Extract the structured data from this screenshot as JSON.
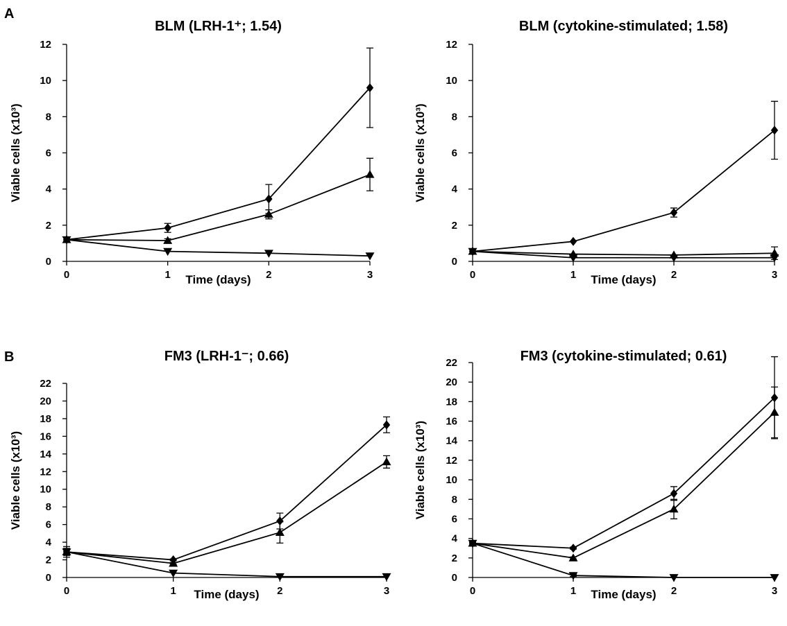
{
  "figure": {
    "panel_letters": [
      "A",
      "B"
    ]
  },
  "chart_data": [
    {
      "type": "line",
      "panel": "A",
      "title": "BLM (LRH-1⁺; 1.54)",
      "xlabel": "Time (days)",
      "ylabel": "Viable cells (x10³)",
      "xlim": [
        0,
        3
      ],
      "ylim": [
        0,
        12
      ],
      "xticks": [
        0,
        1,
        2,
        3
      ],
      "yticks": [
        0,
        2,
        4,
        6,
        8,
        10,
        12
      ],
      "x": [
        0,
        1,
        2,
        3
      ],
      "series": [
        {
          "marker": "diamond",
          "values": [
            1.2,
            1.85,
            3.45,
            9.6
          ],
          "errors": [
            0.1,
            0.25,
            0.8,
            2.2
          ]
        },
        {
          "marker": "triangle-up",
          "values": [
            1.2,
            1.15,
            2.6,
            4.8
          ],
          "errors": [
            0.1,
            0.1,
            0.25,
            0.9
          ]
        },
        {
          "marker": "triangle-down",
          "values": [
            1.2,
            0.55,
            0.45,
            0.3
          ],
          "errors": [
            0.1,
            0.05,
            0.05,
            0.05
          ]
        }
      ]
    },
    {
      "type": "line",
      "panel": "A",
      "title": "BLM (cytokine-stimulated; 1.58)",
      "xlabel": "Time (days)",
      "ylabel": "Viable cells (x10³)",
      "xlim": [
        0,
        3
      ],
      "ylim": [
        0,
        12
      ],
      "xticks": [
        0,
        1,
        2,
        3
      ],
      "yticks": [
        0,
        2,
        4,
        6,
        8,
        10,
        12
      ],
      "x": [
        0,
        1,
        2,
        3
      ],
      "series": [
        {
          "marker": "diamond",
          "values": [
            0.55,
            1.1,
            2.7,
            7.25
          ],
          "errors": [
            0.05,
            0.05,
            0.25,
            1.6
          ]
        },
        {
          "marker": "triangle-up",
          "values": [
            0.55,
            0.4,
            0.35,
            0.45
          ],
          "errors": [
            0.05,
            0.05,
            0.05,
            0.35
          ]
        },
        {
          "marker": "triangle-down",
          "values": [
            0.55,
            0.2,
            0.2,
            0.2
          ],
          "errors": [
            0.05,
            0.05,
            0.05,
            0.05
          ]
        }
      ]
    },
    {
      "type": "line",
      "panel": "B",
      "title": "FM3 (LRH-1⁻; 0.66)",
      "xlabel": "Time (days)",
      "ylabel": "Viable cells (x10³)",
      "xlim": [
        0,
        3
      ],
      "ylim": [
        0,
        22
      ],
      "xticks": [
        0,
        1,
        2,
        3
      ],
      "yticks": [
        0,
        2,
        4,
        6,
        8,
        10,
        12,
        14,
        16,
        18,
        20,
        22
      ],
      "x": [
        0,
        1,
        2,
        3
      ],
      "series": [
        {
          "marker": "diamond",
          "values": [
            2.9,
            2.0,
            6.4,
            17.3
          ],
          "errors": [
            0.6,
            0.1,
            0.9,
            0.9
          ]
        },
        {
          "marker": "triangle-up",
          "values": [
            2.9,
            1.6,
            5.1,
            13.1
          ],
          "errors": [
            0.4,
            0.1,
            1.2,
            0.7
          ]
        },
        {
          "marker": "triangle-down",
          "values": [
            2.9,
            0.5,
            0.1,
            0.1
          ],
          "errors": [
            0.2,
            0.05,
            0.05,
            0.05
          ]
        }
      ]
    },
    {
      "type": "line",
      "panel": "B",
      "title": "FM3 (cytokine-stimulated; 0.61)",
      "xlabel": "Time (days)",
      "ylabel": "Viable cells (x10³)",
      "xlim": [
        0,
        3
      ],
      "ylim": [
        0,
        22
      ],
      "xticks": [
        0,
        1,
        2,
        3
      ],
      "yticks": [
        0,
        2,
        4,
        6,
        8,
        10,
        12,
        14,
        16,
        18,
        20,
        22
      ],
      "x": [
        0,
        1,
        2,
        3
      ],
      "series": [
        {
          "marker": "diamond",
          "values": [
            3.5,
            3.0,
            8.6,
            18.4
          ],
          "errors": [
            0.1,
            0.1,
            0.7,
            4.2
          ]
        },
        {
          "marker": "triangle-up",
          "values": [
            3.5,
            2.0,
            7.0,
            16.9
          ],
          "errors": [
            0.1,
            0.1,
            1.0,
            2.6
          ]
        },
        {
          "marker": "triangle-down",
          "values": [
            3.5,
            0.2,
            0.0,
            0.0
          ],
          "errors": [
            0.1,
            0.1,
            0.05,
            0.05
          ]
        }
      ]
    }
  ]
}
